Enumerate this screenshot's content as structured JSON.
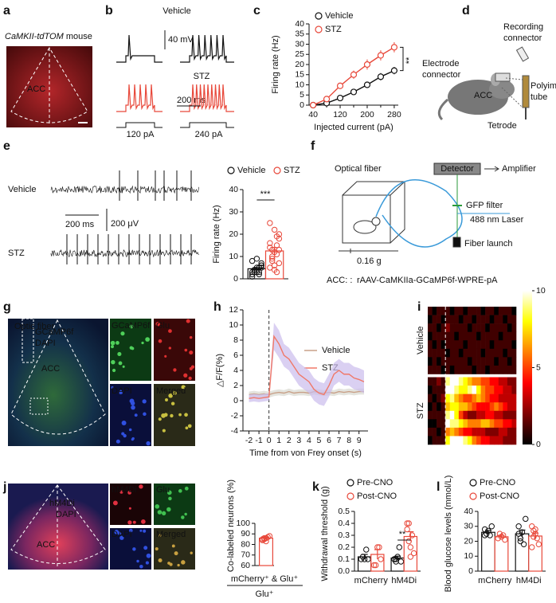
{
  "panels": {
    "a": {
      "label": "a",
      "title_italic": "CaMKII-tdTOM",
      "title_rest": " mouse",
      "region": "ACC"
    },
    "b": {
      "label": "b",
      "vehicle": "Vehicle",
      "stz": "STZ",
      "voltage_scale": "40 mV",
      "time_scale": "200 ms",
      "current_1": "120 pA",
      "current_2": "240 pA"
    },
    "c": {
      "label": "c"
    },
    "d": {
      "label": "d",
      "recording_connector": [
        "Recording",
        "connector"
      ],
      "electrode_connector": [
        "Electrode",
        "connector"
      ],
      "region": "ACC",
      "polyimide_tube": [
        "Polyimide",
        "tube"
      ],
      "tetrode": "Tetrode"
    },
    "e": {
      "label": "e",
      "vehicle": "Vehicle",
      "stz": "STZ",
      "time_scale": "200 ms",
      "voltage_scale": "200  μV"
    },
    "f": {
      "label": "f",
      "optical_fiber": "Optical fiber",
      "detector": "Detector",
      "amplifier": "Amplifier",
      "gfp_filter": "GFP filter",
      "laser": "488 nm Laser",
      "fiber_launch": "Fiber launch",
      "weight": "0.16 g",
      "construct_region": "ACC: : ",
      "construct": "rAAV-CaMKIIa-GCaMP6f-WPRE-pA"
    },
    "g": {
      "label": "g",
      "optic_fiber": "Optic fiber",
      "stain_1": "GCaMP6f",
      "stain_2": "DAPI",
      "region": "ACC",
      "insets": [
        "GCaMP6f",
        "Glu",
        "DAPI",
        "Merged"
      ]
    },
    "h": {
      "label": "h"
    },
    "i": {
      "label": "i"
    },
    "j": {
      "label": "j",
      "stain_1": "hM4Di",
      "stain_2": "DAPI",
      "region": "ACC",
      "insets": [
        "hM4Di",
        "Glu",
        "DAPI",
        "Merged"
      ]
    },
    "k": {
      "label": "k"
    },
    "l": {
      "label": "l"
    }
  },
  "chart_data": [
    {
      "type": "line",
      "x": [
        40,
        80,
        120,
        160,
        200,
        240,
        280
      ],
      "xlim": [
        28,
        292
      ],
      "xticks": [
        40,
        120,
        200,
        280
      ],
      "xticks_minor": [
        80,
        160,
        240
      ],
      "ylim": [
        0,
        40
      ],
      "yticks": [
        0,
        5,
        10,
        15,
        20,
        25,
        30,
        35,
        40
      ],
      "xlabel": "Injected current (pA)",
      "ylabel": "Firing rate (Hz)",
      "series": [
        {
          "name": "Vehicle",
          "color": "#111111",
          "values": [
            0,
            1,
            3.5,
            6.5,
            10,
            14,
            17
          ],
          "errors": [
            0.3,
            0.6,
            1,
            1.2,
            1.5,
            1.8,
            1.8
          ]
        },
        {
          "name": "STZ",
          "color": "#e8483a",
          "values": [
            0,
            3,
            9.5,
            15,
            20,
            24.5,
            28.5
          ],
          "errors": [
            0.3,
            1,
            1.5,
            2,
            2.5,
            2.5,
            2.5
          ]
        }
      ],
      "annotations": [
        "**"
      ]
    },
    {
      "type": "bar",
      "categories": [
        null
      ],
      "ylim": [
        0,
        40
      ],
      "yticks": [
        0,
        10,
        20,
        30,
        40
      ],
      "ylabel": "Firing rate (Hz)",
      "series": [
        {
          "name": "Vehicle",
          "color": "#111111",
          "values": [
            4.5
          ],
          "errors": [
            0.5
          ],
          "points": [
            [
              2,
              3,
              4,
              5,
              6,
              3,
              4,
              5,
              2,
              7,
              8,
              4,
              3,
              5,
              6,
              1,
              4,
              9,
              3,
              5
            ]
          ]
        },
        {
          "name": "STZ",
          "color": "#e8483a",
          "values": [
            12.5
          ],
          "errors": [
            1.5
          ],
          "points": [
            [
              5,
              8,
              12,
              15,
              20,
              25,
              10,
              6,
              3,
              18,
              14,
              9,
              22,
              11,
              7,
              16,
              13,
              4,
              19,
              13
            ]
          ]
        }
      ],
      "annotations": [
        "***"
      ]
    },
    {
      "type": "line",
      "x": [
        -2,
        -1.5,
        -1,
        -0.5,
        0,
        0.5,
        1,
        1.5,
        2,
        2.5,
        3,
        3.5,
        4,
        4.5,
        5,
        5.5,
        6,
        6.5,
        7,
        7.5,
        8,
        8.5,
        9,
        9.5
      ],
      "xlim": [
        -2.6,
        9.9
      ],
      "xticks": [
        -2,
        -1,
        0,
        1,
        2,
        3,
        4,
        5,
        6,
        7,
        8,
        9
      ],
      "ylim": [
        -4,
        12
      ],
      "yticks": [
        -4,
        -2,
        0,
        2,
        4,
        6,
        8,
        10,
        12
      ],
      "xlabel": "Time from von Frey onset (s)",
      "ylabel": "△F/F(%)",
      "vline": 0,
      "series": [
        {
          "name": "Vehicle",
          "color": "#c8a088",
          "band_color": "#d8d8d0",
          "values": [
            0.8,
            0.9,
            0.8,
            0.9,
            0.8,
            1,
            1.1,
            1,
            1.2,
            1,
            1.1,
            1.1,
            1,
            1.2,
            1.1,
            1,
            1.1,
            1,
            1.2,
            1.1,
            1.2,
            1.1,
            1.2,
            1.2
          ],
          "errors": [
            0.4,
            0.4,
            0.4,
            0.4,
            0.4,
            0.4,
            0.4,
            0.4,
            0.4,
            0.4,
            0.4,
            0.4,
            0.4,
            0.4,
            0.4,
            0.4,
            0.4,
            0.4,
            0.4,
            0.4,
            0.4,
            0.4,
            0.4,
            0.4
          ]
        },
        {
          "name": "STZ",
          "color": "#f07868",
          "band_color": "#cbbcec",
          "values": [
            0.3,
            0.4,
            0.3,
            0.4,
            0.5,
            8.5,
            7.5,
            6,
            5.5,
            4.5,
            3.5,
            3,
            2.5,
            1.5,
            1,
            0.8,
            2,
            3.5,
            4,
            3.5,
            3.5,
            3,
            2.8,
            2.5
          ],
          "errors": [
            0.5,
            0.5,
            0.5,
            0.5,
            0.5,
            1.8,
            1.8,
            1.5,
            1.5,
            1.5,
            1.5,
            1.5,
            1.5,
            1.5,
            1.5,
            1.5,
            1.5,
            1.5,
            1.5,
            1.5,
            1.5,
            1.5,
            1.5,
            1.5
          ]
        }
      ]
    },
    {
      "type": "heatmap",
      "clim": [
        0,
        10
      ],
      "cticks": [
        0,
        5,
        10
      ],
      "groups": [
        {
          "name": "Vehicle",
          "z": [
            [
              1,
              0,
              1,
              1,
              1,
              0,
              1,
              1,
              0,
              1,
              1,
              1,
              0,
              1,
              1,
              0,
              1,
              1,
              1,
              0
            ],
            [
              0,
              1,
              1,
              0,
              1,
              1,
              1,
              0,
              1,
              1,
              0,
              1,
              1,
              1,
              0,
              1,
              1,
              0,
              1,
              1
            ],
            [
              1,
              1,
              0,
              1,
              2,
              1,
              1,
              1,
              1,
              0,
              1,
              1,
              1,
              0,
              1,
              1,
              1,
              1,
              0,
              1
            ],
            [
              0,
              1,
              1,
              1,
              1,
              1,
              0,
              1,
              1,
              1,
              1,
              0,
              1,
              1,
              1,
              1,
              0,
              1,
              1,
              1
            ],
            [
              1,
              0,
              1,
              0,
              1,
              1,
              1,
              1,
              0,
              1,
              1,
              1,
              1,
              1,
              0,
              1,
              1,
              1,
              1,
              0
            ],
            [
              1,
              1,
              1,
              1,
              0,
              1,
              1,
              0,
              1,
              1,
              1,
              1,
              0,
              1,
              1,
              1,
              1,
              0,
              1,
              1
            ],
            [
              0,
              1,
              0,
              1,
              1,
              1,
              1,
              1,
              1,
              0,
              1,
              1,
              1,
              1,
              1,
              0,
              1,
              1,
              0,
              1
            ],
            [
              1,
              1,
              1,
              0,
              1,
              0,
              1,
              1,
              1,
              1,
              0,
              1,
              1,
              0,
              1,
              1,
              1,
              1,
              1,
              1
            ]
          ]
        },
        {
          "name": "STZ",
          "z": [
            [
              1,
              1,
              2,
              1,
              9,
              10,
              10,
              9,
              8,
              7,
              6,
              6,
              5,
              5,
              4,
              4,
              3,
              3,
              2,
              2
            ],
            [
              0,
              1,
              1,
              1,
              10,
              10,
              9,
              8,
              8,
              9,
              10,
              8,
              6,
              5,
              5,
              4,
              4,
              3,
              3,
              2
            ],
            [
              1,
              0,
              1,
              2,
              8,
              9,
              7,
              6,
              5,
              5,
              6,
              7,
              6,
              5,
              4,
              4,
              3,
              3,
              3,
              3
            ],
            [
              0,
              1,
              0,
              1,
              7,
              8,
              8,
              7,
              7,
              6,
              5,
              4,
              4,
              4,
              5,
              6,
              5,
              4,
              3,
              3
            ],
            [
              1,
              1,
              1,
              1,
              9,
              10,
              8,
              5,
              3,
              2,
              2,
              3,
              3,
              4,
              4,
              3,
              3,
              2,
              2,
              2
            ],
            [
              0,
              0,
              1,
              1,
              10,
              9,
              9,
              8,
              7,
              6,
              6,
              6,
              7,
              7,
              6,
              5,
              5,
              4,
              4,
              3
            ],
            [
              1,
              1,
              0,
              1,
              6,
              7,
              6,
              5,
              4,
              4,
              3,
              3,
              3,
              2,
              2,
              2,
              3,
              3,
              2,
              2
            ],
            [
              0,
              1,
              1,
              1,
              8,
              10,
              10,
              10,
              9,
              8,
              6,
              5,
              4,
              4,
              3,
              3,
              3,
              2,
              2,
              2
            ]
          ]
        }
      ]
    },
    {
      "type": "bar",
      "values": [
        86
      ],
      "errors": [
        1
      ],
      "points": [
        [
          84,
          85,
          86,
          87,
          88,
          85,
          86,
          83
        ]
      ],
      "color": "#e8483a",
      "ylim": [
        60,
        100
      ],
      "yticks": [
        60,
        70,
        80,
        90,
        100
      ],
      "ylabel": "Co-labeled neurons (%)",
      "xlabel_numerator": "mCherry⁺ & Glu⁺",
      "xlabel_denominator": "Glu⁺"
    },
    {
      "type": "bar",
      "categories": [
        "mCherry",
        "hM4Di"
      ],
      "ylim": [
        0,
        0.5
      ],
      "yticks": [
        {
          "value": 0,
          "label": "0.0"
        },
        0.1,
        0.2,
        0.3,
        0.4,
        0.5
      ],
      "ylabel": "Withdrawal threshold (g)",
      "series": [
        {
          "name": "Pre-CNO",
          "color": "#111111",
          "values": [
            0.12,
            0.11
          ],
          "errors": [
            0.02,
            0.015
          ],
          "points": [
            [
              0.1,
              0.12,
              0.1,
              0.18,
              0.1
            ],
            [
              0.1,
              0.08,
              0.12,
              0.2,
              0.08,
              0.1,
              0.1
            ]
          ]
        },
        {
          "name": "Post-CNO",
          "color": "#e8483a",
          "values": [
            0.14,
            0.29
          ],
          "errors": [
            0.04,
            0.04
          ],
          "points": [
            [
              0.05,
              0.05,
              0.2,
              0.2,
              0.1
            ],
            [
              0.4,
              0.4,
              0.2,
              0.3,
              0.15,
              0.35,
              0.25,
              0.12
            ]
          ]
        }
      ],
      "annotations": [
        "**"
      ]
    },
    {
      "type": "bar",
      "categories": [
        "mCherry",
        "hM4Di"
      ],
      "ylim": [
        0,
        40
      ],
      "yticks": [
        0,
        10,
        20,
        30,
        40
      ],
      "ylabel": "Blood glucose levels (mmol/L)",
      "series": [
        {
          "name": "Pre-CNO",
          "color": "#111111",
          "values": [
            26,
            25
          ],
          "errors": [
            1.2,
            2.5
          ],
          "points": [
            [
              28,
              25,
              27,
              24,
              30,
              24
            ],
            [
              30,
              22,
              26,
              18,
              35,
              25,
              20
            ]
          ]
        },
        {
          "name": "Post-CNO",
          "color": "#e8483a",
          "values": [
            23,
            23.5
          ],
          "errors": [
            1,
            2
          ],
          "points": [
            [
              22,
              25,
              23,
              24,
              21
            ],
            [
              30,
              27,
              25,
              22,
              18,
              16,
              23,
              28
            ]
          ]
        }
      ]
    }
  ]
}
